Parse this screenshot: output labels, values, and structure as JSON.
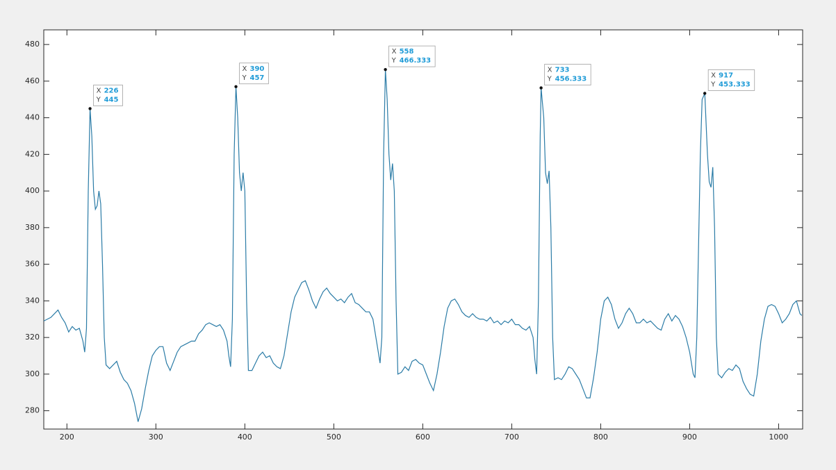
{
  "chart_data": {
    "type": "line",
    "x": [
      174,
      178,
      182,
      186,
      190,
      194,
      198,
      202,
      206,
      210,
      214,
      218,
      220,
      222,
      224,
      226,
      228,
      230,
      232,
      234,
      236,
      238,
      240,
      242,
      244,
      248,
      252,
      256,
      260,
      264,
      268,
      272,
      276,
      280,
      284,
      288,
      292,
      296,
      300,
      304,
      308,
      312,
      316,
      320,
      324,
      328,
      332,
      336,
      340,
      344,
      348,
      352,
      356,
      360,
      364,
      368,
      372,
      376,
      380,
      382,
      384,
      386,
      388,
      390,
      392,
      394,
      396,
      398,
      400,
      402,
      404,
      408,
      412,
      416,
      420,
      424,
      428,
      432,
      436,
      440,
      444,
      448,
      452,
      456,
      460,
      464,
      468,
      472,
      476,
      480,
      484,
      488,
      492,
      496,
      500,
      504,
      508,
      512,
      516,
      520,
      524,
      528,
      532,
      536,
      540,
      544,
      548,
      552,
      554,
      556,
      558,
      560,
      562,
      564,
      566,
      568,
      570,
      572,
      576,
      580,
      584,
      588,
      592,
      596,
      600,
      604,
      608,
      612,
      616,
      620,
      624,
      628,
      632,
      636,
      640,
      644,
      648,
      652,
      656,
      660,
      664,
      668,
      672,
      676,
      680,
      684,
      688,
      692,
      696,
      700,
      704,
      708,
      712,
      716,
      720,
      724,
      726,
      728,
      730,
      732,
      733,
      736,
      738,
      740,
      742,
      744,
      746,
      748,
      752,
      756,
      760,
      764,
      768,
      772,
      776,
      780,
      784,
      788,
      792,
      796,
      800,
      804,
      808,
      812,
      816,
      820,
      824,
      828,
      832,
      836,
      840,
      844,
      848,
      852,
      856,
      860,
      864,
      868,
      872,
      876,
      880,
      884,
      888,
      892,
      896,
      900,
      904,
      906,
      908,
      912,
      914,
      917,
      920,
      922,
      924,
      926,
      928,
      930,
      932,
      936,
      940,
      944,
      948,
      952,
      956,
      960,
      964,
      968,
      972,
      976,
      980,
      984,
      988,
      992,
      996,
      1000,
      1004,
      1008,
      1012,
      1016,
      1020,
      1024,
      1026
    ],
    "series": [
      {
        "color": "#2a7ba6",
        "values": [
          329,
          330,
          331,
          333,
          335,
          331,
          328,
          323,
          326,
          324,
          325,
          318,
          312,
          325,
          400,
          445,
          430,
          400,
          390,
          392,
          400,
          393,
          360,
          320,
          305,
          303,
          305,
          307,
          301,
          297,
          295,
          291,
          284,
          274,
          281,
          292,
          302,
          310,
          313,
          315,
          315,
          306,
          302,
          307,
          312,
          315,
          316,
          317,
          318,
          318,
          322,
          324,
          327,
          328,
          327,
          326,
          327,
          324,
          318,
          310,
          304,
          330,
          420,
          457,
          440,
          410,
          400,
          410,
          400,
          340,
          302,
          302,
          306,
          310,
          312,
          309,
          310,
          306,
          304,
          303,
          310,
          322,
          334,
          342,
          346,
          350,
          351,
          346,
          340,
          336,
          341,
          345,
          347,
          344,
          342,
          340,
          341,
          339,
          342,
          344,
          339,
          338,
          336,
          334,
          334,
          330,
          318,
          306,
          320,
          420,
          466.333,
          450,
          420,
          406,
          415,
          400,
          340,
          300,
          301,
          304,
          302,
          307,
          308,
          306,
          305,
          300,
          295,
          291,
          300,
          312,
          326,
          336,
          340,
          341,
          338,
          334,
          332,
          331,
          333,
          331,
          330,
          330,
          329,
          331,
          328,
          329,
          327,
          329,
          328,
          330,
          327,
          327,
          325,
          324,
          326,
          320,
          308,
          300,
          340,
          430,
          456.333,
          440,
          410,
          404,
          411,
          380,
          320,
          297,
          298,
          297,
          300,
          304,
          303,
          300,
          297,
          292,
          287,
          287,
          298,
          312,
          330,
          340,
          342,
          338,
          330,
          325,
          328,
          333,
          336,
          333,
          328,
          328,
          330,
          328,
          329,
          327,
          325,
          324,
          330,
          333,
          329,
          332,
          330,
          326,
          320,
          312,
          300,
          298,
          320,
          420,
          450,
          453.333,
          420,
          405,
          402,
          413,
          380,
          320,
          300,
          298,
          301,
          303,
          302,
          305,
          303,
          296,
          292,
          289,
          288,
          300,
          318,
          330,
          337,
          338,
          337,
          333,
          328,
          330,
          333,
          338,
          340,
          333,
          332
        ]
      }
    ],
    "xlim": [
      174,
      1027
    ],
    "ylim": [
      270,
      488
    ],
    "xticks": [
      200,
      300,
      400,
      500,
      600,
      700,
      800,
      900,
      1000
    ],
    "yticks": [
      280,
      300,
      320,
      340,
      360,
      380,
      400,
      420,
      440,
      460,
      480
    ],
    "datatips": [
      {
        "x_label": "X",
        "x": 226,
        "y_label": "Y",
        "y": 445
      },
      {
        "x_label": "X",
        "x": 390,
        "y_label": "Y",
        "y": 457
      },
      {
        "x_label": "X",
        "x": 558,
        "y_label": "Y",
        "y": 466.333
      },
      {
        "x_label": "X",
        "x": 733,
        "y_label": "Y",
        "y": 456.333
      },
      {
        "x_label": "X",
        "x": 917,
        "y_label": "Y",
        "y": 453.333
      }
    ]
  }
}
